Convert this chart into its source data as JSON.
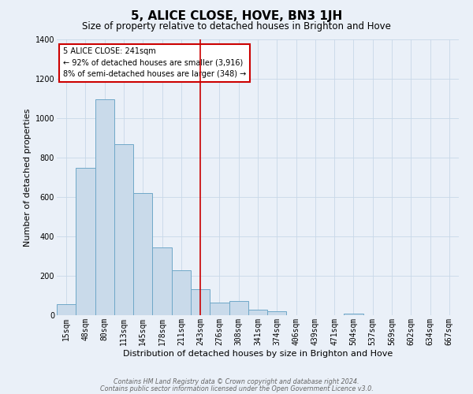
{
  "title": "5, ALICE CLOSE, HOVE, BN3 1JH",
  "subtitle": "Size of property relative to detached houses in Brighton and Hove",
  "xlabel": "Distribution of detached houses by size in Brighton and Hove",
  "ylabel": "Number of detached properties",
  "bar_labels": [
    "15sqm",
    "48sqm",
    "80sqm",
    "113sqm",
    "145sqm",
    "178sqm",
    "211sqm",
    "243sqm",
    "276sqm",
    "308sqm",
    "341sqm",
    "374sqm",
    "406sqm",
    "439sqm",
    "471sqm",
    "504sqm",
    "537sqm",
    "569sqm",
    "602sqm",
    "634sqm",
    "667sqm"
  ],
  "bar_values": [
    55,
    750,
    1095,
    870,
    620,
    345,
    228,
    133,
    65,
    72,
    28,
    20,
    0,
    0,
    0,
    10,
    0,
    0,
    0,
    0,
    0
  ],
  "bar_color": "#c9daea",
  "bar_edge_color": "#6fa8c8",
  "grid_color": "#c8d8e8",
  "background_color": "#eaf0f8",
  "vline_x_index": 7,
  "vline_color": "#cc0000",
  "annotation_title": "5 ALICE CLOSE: 241sqm",
  "annotation_line1": "← 92% of detached houses are smaller (3,916)",
  "annotation_line2": "8% of semi-detached houses are larger (348) →",
  "annotation_box_color": "#ffffff",
  "annotation_box_edge": "#cc0000",
  "footer1": "Contains HM Land Registry data © Crown copyright and database right 2024.",
  "footer2": "Contains public sector information licensed under the Open Government Licence v3.0.",
  "ylim": [
    0,
    1400
  ],
  "yticks": [
    0,
    200,
    400,
    600,
    800,
    1000,
    1200,
    1400
  ],
  "title_fontsize": 11,
  "subtitle_fontsize": 8.5,
  "xlabel_fontsize": 8,
  "ylabel_fontsize": 8,
  "tick_fontsize": 7,
  "footer_fontsize": 5.8,
  "ann_fontsize": 7
}
